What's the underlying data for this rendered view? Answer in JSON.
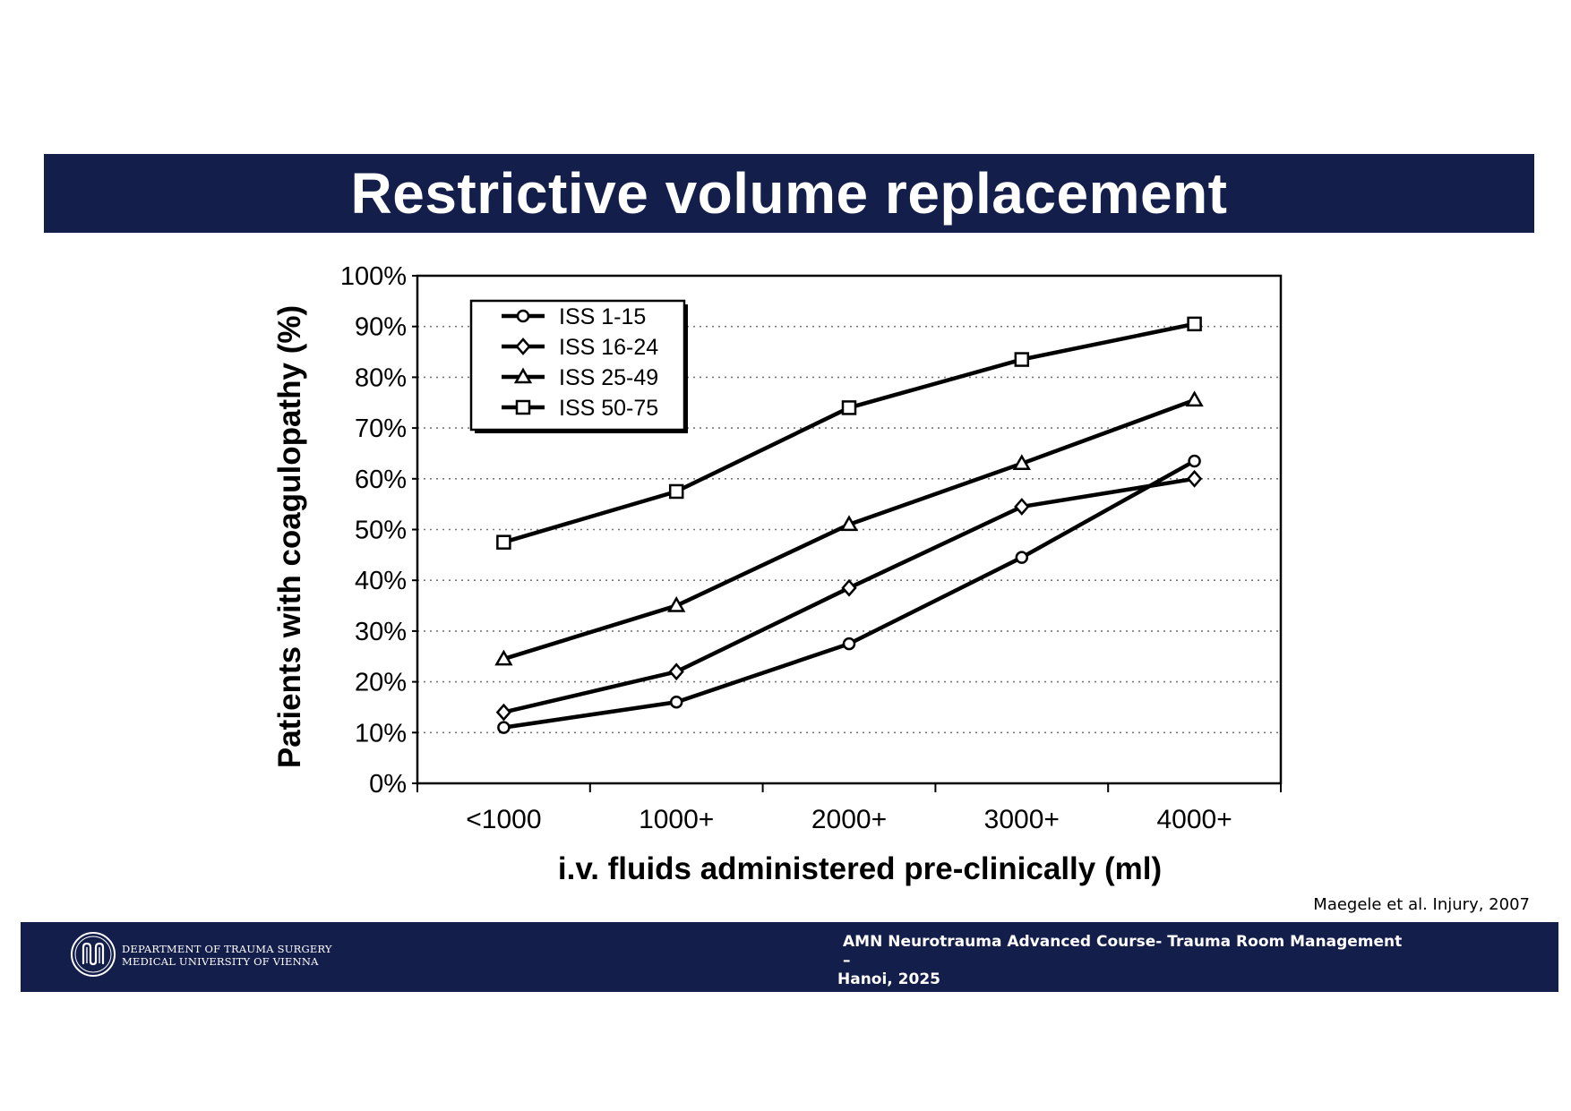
{
  "slide": {
    "title": "Restrictive volume replacement",
    "citation": "Maegele et al. Injury, 2007"
  },
  "footer": {
    "department_line1": "DEPARTMENT OF TRAUMA SURGERY",
    "department_line2": "MEDICAL UNIVERSITY OF VIENNA",
    "course_line1": "AMN Neurotrauma Advanced Course- Trauma Room Management –",
    "course_line2": "Hanoi, 2025",
    "logo_icon": "university-logo-icon",
    "background_color": "#141e4b"
  },
  "chart_data": {
    "type": "line",
    "title": "",
    "xlabel": "i.v. fluids administered pre-clinically (ml)",
    "ylabel": "Patients with coagulopathy (%)",
    "categories": [
      "<1000",
      "1000+",
      "2000+",
      "3000+",
      "4000+"
    ],
    "ylim": [
      0,
      100
    ],
    "yticks": [
      0,
      10,
      20,
      30,
      40,
      50,
      60,
      70,
      80,
      90,
      100
    ],
    "ytick_suffix": "%",
    "grid": "horizontal-dotted",
    "legend_position": "top-left",
    "series": [
      {
        "name": "ISS 1-15",
        "marker": "circle",
        "values": [
          11,
          16,
          27.5,
          44.5,
          63.5
        ]
      },
      {
        "name": "ISS 16-24",
        "marker": "diamond",
        "values": [
          14,
          22,
          38.5,
          54.5,
          60
        ]
      },
      {
        "name": "ISS 25-49",
        "marker": "triangle",
        "values": [
          24.5,
          35,
          51,
          63,
          75.5
        ]
      },
      {
        "name": "ISS 50-75",
        "marker": "square",
        "values": [
          47.5,
          57.5,
          74,
          83.5,
          90.5
        ]
      }
    ]
  }
}
